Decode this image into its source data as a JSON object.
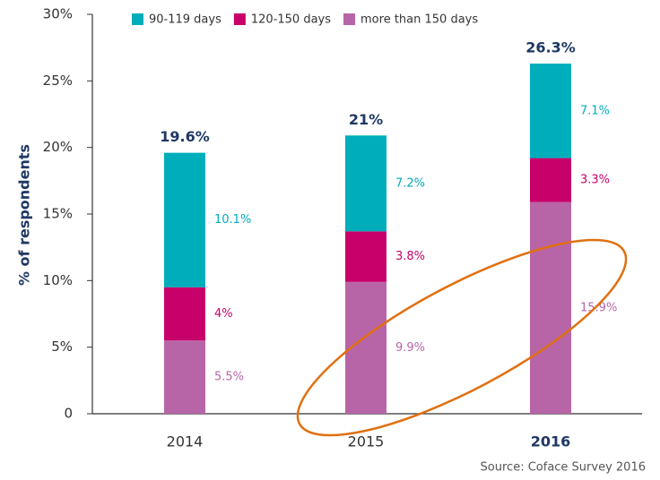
{
  "chart_data": {
    "type": "stacked_bar",
    "y_label": "% of respondents",
    "source": "Source: Coface Survey 2016",
    "categories": [
      "2014",
      "2015",
      "2016"
    ],
    "highlight": "2016",
    "series": [
      {
        "name": "90-119 days",
        "color": "#00aebb",
        "values": [
          10.1,
          7.2,
          7.1
        ],
        "value_labels": [
          "10.1%",
          "7.2%",
          "7.1%"
        ]
      },
      {
        "name": "120-150 days",
        "color": "#c8006a",
        "values": [
          4,
          3.8,
          3.3
        ],
        "value_labels": [
          "4%",
          "3.8%",
          "3.3%"
        ]
      },
      {
        "name": "more than 150 days",
        "color": "#b865a8",
        "values": [
          5.5,
          9.9,
          15.9
        ],
        "value_labels": [
          "5.5%",
          "9.9%",
          "15.9%"
        ]
      }
    ],
    "totals": [
      19.6,
      21,
      26.3
    ],
    "total_labels": [
      "19.6%",
      "21%",
      "26.3%"
    ],
    "total_color": "#1f3864",
    "ylim": [
      0,
      30
    ],
    "yticks": [
      0,
      {
        "value": 5,
        "label": "5%"
      },
      {
        "value": 10,
        "label": "10%"
      },
      {
        "value": 15,
        "label": "15%"
      },
      {
        "value": 20,
        "label": "20%"
      },
      {
        "value": 25,
        "label": "25%"
      },
      {
        "value": 30,
        "label": "30%"
      }
    ]
  }
}
